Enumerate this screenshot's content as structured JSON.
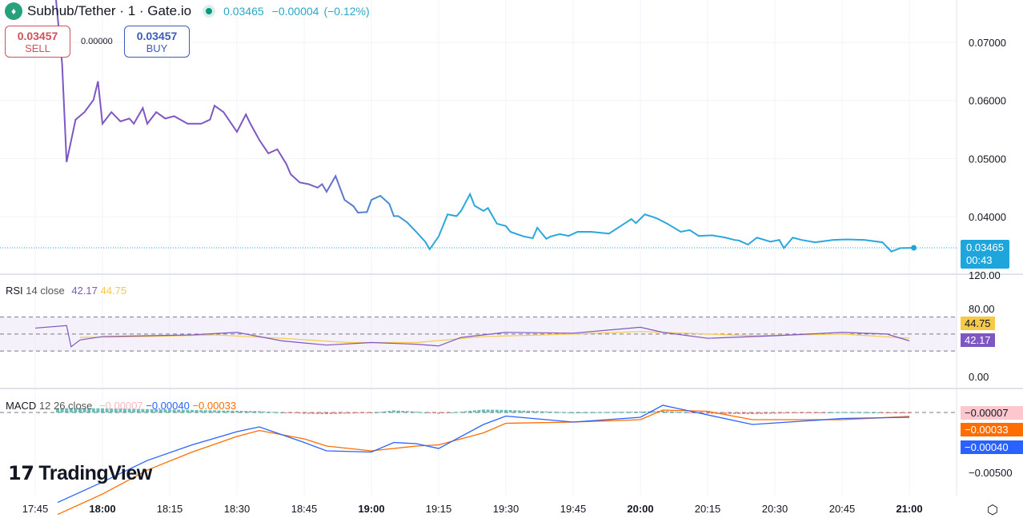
{
  "header": {
    "title": "Subhub/Tether · 1 · Gate.io",
    "icon": "tether-logo-icon",
    "last": "0.03465",
    "change": "−0.00004",
    "change_pct": "(−0.12%)",
    "status_color": "#089981"
  },
  "trade": {
    "sell_price": "0.03457",
    "sell_label": "SELL",
    "spread": "0.00000",
    "buy_price": "0.03457",
    "buy_label": "BUY"
  },
  "price_tag": {
    "value": "0.03465",
    "countdown": "00:43",
    "color": "#1ea5dc"
  },
  "rsi": {
    "label": "RSI",
    "params": "14 close",
    "value": "42.17",
    "ma_value": "44.75",
    "axis": [
      "120.00",
      "80.00",
      "0.00"
    ],
    "tag_rsi": "42.17",
    "tag_ma": "44.75",
    "color": "#7e57c2",
    "ma_color": "#f7c948"
  },
  "macd": {
    "label": "MACD",
    "params": "12 26 close",
    "hist": "−0.00007",
    "macd": "−0.00040",
    "signal": "−0.00033",
    "axis": [
      "−0.00500"
    ],
    "tag_hist": "−0.00007",
    "tag_signal": "−0.00033",
    "tag_macd": "−0.00040",
    "macd_color": "#2962ff",
    "signal_color": "#ff6d00"
  },
  "brand": "TradingView",
  "settings_icon": "gear-hexagon-icon",
  "chart_data": {
    "type": "line",
    "x_ticks": [
      "17:45",
      "18:00",
      "18:15",
      "18:30",
      "18:45",
      "19:00",
      "19:15",
      "19:30",
      "19:45",
      "20:00",
      "20:15",
      "20:30",
      "20:45",
      "21:00"
    ],
    "bold_ticks": [
      "18:00",
      "19:00",
      "20:00",
      "21:00"
    ],
    "y_ticks": [
      "0.07000",
      "0.06000",
      "0.05000",
      "0.04000"
    ],
    "ylim": [
      0.032,
      0.073
    ],
    "price": [
      [
        "17:51",
        0.0663
      ],
      [
        "17:52",
        0.0494
      ],
      [
        "17:54",
        0.0567
      ],
      [
        "17:56",
        0.058
      ],
      [
        "17:58",
        0.0601
      ],
      [
        "17:59",
        0.0633
      ],
      [
        "18:00",
        0.056
      ],
      [
        "18:02",
        0.058
      ],
      [
        "18:04",
        0.0564
      ],
      [
        "18:06",
        0.0569
      ],
      [
        "18:07",
        0.056
      ],
      [
        "18:09",
        0.0587
      ],
      [
        "18:10",
        0.056
      ],
      [
        "18:12",
        0.058
      ],
      [
        "18:14",
        0.0569
      ],
      [
        "18:16",
        0.0573
      ],
      [
        "18:19",
        0.056
      ],
      [
        "18:22",
        0.056
      ],
      [
        "18:24",
        0.0567
      ],
      [
        "18:25",
        0.0591
      ],
      [
        "18:27",
        0.058
      ],
      [
        "18:30",
        0.0546
      ],
      [
        "18:32",
        0.0576
      ],
      [
        "18:33",
        0.056
      ],
      [
        "18:35",
        0.0532
      ],
      [
        "18:37",
        0.0509
      ],
      [
        "18:39",
        0.0516
      ],
      [
        "18:41",
        0.0491
      ],
      [
        "18:42",
        0.0473
      ],
      [
        "18:44",
        0.0459
      ],
      [
        "18:46",
        0.0456
      ],
      [
        "18:48",
        0.045
      ],
      [
        "18:49",
        0.0456
      ],
      [
        "18:50",
        0.0443
      ],
      [
        "18:52",
        0.047
      ],
      [
        "18:54",
        0.0429
      ],
      [
        "18:56",
        0.0418
      ],
      [
        "18:57",
        0.0407
      ],
      [
        "18:59",
        0.0408
      ],
      [
        "19:00",
        0.0429
      ],
      [
        "19:02",
        0.0436
      ],
      [
        "19:04",
        0.0422
      ],
      [
        "19:05",
        0.0401
      ],
      [
        "19:06",
        0.0401
      ],
      [
        "19:08",
        0.039
      ],
      [
        "19:10",
        0.0374
      ],
      [
        "19:12",
        0.0357
      ],
      [
        "19:13",
        0.0344
      ],
      [
        "19:15",
        0.0366
      ],
      [
        "19:17",
        0.0404
      ],
      [
        "19:19",
        0.0401
      ],
      [
        "19:20",
        0.041
      ],
      [
        "19:22",
        0.0439
      ],
      [
        "19:23",
        0.0419
      ],
      [
        "19:25",
        0.041
      ],
      [
        "19:26",
        0.0415
      ],
      [
        "19:28",
        0.0388
      ],
      [
        "19:30",
        0.0384
      ],
      [
        "19:31",
        0.0374
      ],
      [
        "19:34",
        0.0366
      ],
      [
        "19:36",
        0.0363
      ],
      [
        "19:37",
        0.0381
      ],
      [
        "19:39",
        0.0362
      ],
      [
        "19:40",
        0.0366
      ],
      [
        "19:42",
        0.037
      ],
      [
        "19:44",
        0.0367
      ],
      [
        "19:46",
        0.0374
      ],
      [
        "19:49",
        0.0374
      ],
      [
        "19:53",
        0.0371
      ],
      [
        "19:56",
        0.0386
      ],
      [
        "19:58",
        0.0396
      ],
      [
        "19:59",
        0.0389
      ],
      [
        "20:01",
        0.0404
      ],
      [
        "20:03",
        0.0399
      ],
      [
        "20:04",
        0.0396
      ],
      [
        "20:06",
        0.0388
      ],
      [
        "20:09",
        0.0374
      ],
      [
        "20:11",
        0.0377
      ],
      [
        "20:13",
        0.0367
      ],
      [
        "20:16",
        0.0368
      ],
      [
        "20:19",
        0.0364
      ],
      [
        "20:21",
        0.036
      ],
      [
        "20:22",
        0.0359
      ],
      [
        "20:24",
        0.0352
      ],
      [
        "20:26",
        0.0364
      ],
      [
        "20:29",
        0.0357
      ],
      [
        "20:31",
        0.036
      ],
      [
        "20:32",
        0.0346
      ],
      [
        "20:34",
        0.0364
      ],
      [
        "20:36",
        0.036
      ],
      [
        "20:39",
        0.0356
      ],
      [
        "20:43",
        0.036
      ],
      [
        "20:46",
        0.0361
      ],
      [
        "20:50",
        0.036
      ],
      [
        "20:54",
        0.0356
      ],
      [
        "20:56",
        0.034
      ],
      [
        "20:58",
        0.0346
      ],
      [
        "21:01",
        0.03465
      ]
    ],
    "rsi_ylim": [
      0,
      120
    ],
    "rsi_bands": [
      30,
      50,
      70
    ],
    "rsi_values": [
      [
        "17:45",
        57
      ],
      [
        "17:52",
        60
      ],
      [
        "17:53",
        35
      ],
      [
        "17:55",
        43
      ],
      [
        "18:00",
        47
      ],
      [
        "18:10",
        48
      ],
      [
        "18:20",
        49
      ],
      [
        "18:30",
        52
      ],
      [
        "18:40",
        42
      ],
      [
        "18:50",
        37
      ],
      [
        "19:00",
        40
      ],
      [
        "19:10",
        38
      ],
      [
        "19:15",
        36
      ],
      [
        "19:20",
        46
      ],
      [
        "19:30",
        52
      ],
      [
        "19:45",
        51
      ],
      [
        "20:00",
        58
      ],
      [
        "20:05",
        52
      ],
      [
        "20:15",
        45
      ],
      [
        "20:30",
        48
      ],
      [
        "20:45",
        52
      ],
      [
        "20:55",
        50
      ],
      [
        "21:00",
        42
      ]
    ],
    "rsi_ma": [
      [
        "17:55",
        46
      ],
      [
        "18:10",
        47
      ],
      [
        "18:25",
        49
      ],
      [
        "18:40",
        45
      ],
      [
        "18:55",
        40
      ],
      [
        "19:10",
        40
      ],
      [
        "19:25",
        47
      ],
      [
        "19:45",
        50
      ],
      [
        "20:00",
        53
      ],
      [
        "20:10",
        51
      ],
      [
        "20:25",
        48
      ],
      [
        "20:45",
        50
      ],
      [
        "21:00",
        45
      ]
    ],
    "macd_values": [
      [
        "17:50",
        -0.0075
      ],
      [
        "18:00",
        -0.0058
      ],
      [
        "18:10",
        -0.004
      ],
      [
        "18:20",
        -0.0027
      ],
      [
        "18:30",
        -0.0016
      ],
      [
        "18:35",
        -0.0012
      ],
      [
        "18:45",
        -0.0025
      ],
      [
        "18:50",
        -0.0032
      ],
      [
        "19:00",
        -0.0033
      ],
      [
        "19:05",
        -0.0025
      ],
      [
        "19:10",
        -0.0026
      ],
      [
        "19:15",
        -0.003
      ],
      [
        "19:25",
        -0.001
      ],
      [
        "19:30",
        -0.0003
      ],
      [
        "19:45",
        -0.0008
      ],
      [
        "20:00",
        -0.0004
      ],
      [
        "20:05",
        0.0006
      ],
      [
        "20:15",
        -0.0002
      ],
      [
        "20:25",
        -0.001
      ],
      [
        "20:45",
        -0.0005
      ],
      [
        "21:00",
        -0.0004
      ]
    ],
    "signal_values": [
      [
        "17:50",
        -0.0085
      ],
      [
        "18:00",
        -0.0068
      ],
      [
        "18:10",
        -0.0048
      ],
      [
        "18:20",
        -0.0033
      ],
      [
        "18:30",
        -0.002
      ],
      [
        "18:35",
        -0.0015
      ],
      [
        "18:45",
        -0.0022
      ],
      [
        "18:50",
        -0.0028
      ],
      [
        "19:00",
        -0.0032
      ],
      [
        "19:10",
        -0.0028
      ],
      [
        "19:15",
        -0.0027
      ],
      [
        "19:25",
        -0.0017
      ],
      [
        "19:30",
        -0.0009
      ],
      [
        "19:45",
        -0.0008
      ],
      [
        "20:00",
        -0.0006
      ],
      [
        "20:05",
        0.0002
      ],
      [
        "20:15",
        0.0001
      ],
      [
        "20:25",
        -0.0006
      ],
      [
        "20:45",
        -0.0006
      ],
      [
        "21:00",
        -0.00033
      ]
    ],
    "macd_ylim": [
      -0.0065,
      0.001
    ]
  }
}
